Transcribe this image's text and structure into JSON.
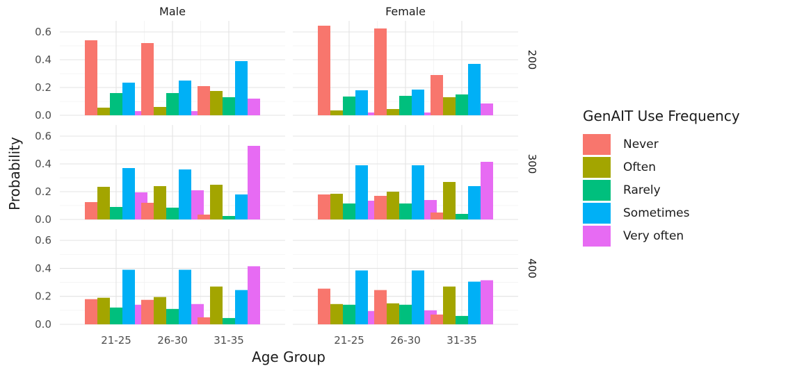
{
  "chart_data": {
    "type": "bar",
    "xlabel": "Age Group",
    "ylabel": "Probability",
    "ylim": [
      0,
      0.68
    ],
    "yticks": [
      0.0,
      0.2,
      0.4,
      0.6
    ],
    "categories": [
      "21-25",
      "26-30",
      "31-35"
    ],
    "column_facets": [
      "Male",
      "Female"
    ],
    "row_facets": [
      "200",
      "300",
      "400"
    ],
    "grid": true,
    "legend": {
      "title": "GenAIT Use Frequency",
      "position": "right",
      "entries": [
        "Never",
        "Often",
        "Rarely",
        "Sometimes",
        "Very often"
      ]
    },
    "series_colors": {
      "Never": "#F8766D",
      "Often": "#A3A500",
      "Rarely": "#00BF7D",
      "Sometimes": "#00B0F6",
      "Very often": "#E76BF3"
    },
    "panels": [
      {
        "row": "200",
        "col": "Male",
        "values": {
          "21-25": [
            0.54,
            0.055,
            0.16,
            0.235,
            0.03
          ],
          "26-30": [
            0.52,
            0.06,
            0.16,
            0.25,
            0.03
          ],
          "31-35": [
            0.21,
            0.175,
            0.13,
            0.39,
            0.12
          ]
        }
      },
      {
        "row": "200",
        "col": "Female",
        "values": {
          "21-25": [
            0.645,
            0.035,
            0.135,
            0.18,
            0.02
          ],
          "26-30": [
            0.625,
            0.045,
            0.14,
            0.185,
            0.02
          ],
          "31-35": [
            0.29,
            0.13,
            0.15,
            0.37,
            0.085
          ]
        }
      },
      {
        "row": "300",
        "col": "Male",
        "values": {
          "21-25": [
            0.125,
            0.235,
            0.09,
            0.37,
            0.195
          ],
          "26-30": [
            0.12,
            0.24,
            0.085,
            0.36,
            0.21
          ],
          "31-35": [
            0.035,
            0.25,
            0.025,
            0.18,
            0.53
          ]
        }
      },
      {
        "row": "300",
        "col": "Female",
        "values": {
          "21-25": [
            0.18,
            0.185,
            0.115,
            0.39,
            0.135
          ],
          "26-30": [
            0.17,
            0.2,
            0.115,
            0.39,
            0.14
          ],
          "31-35": [
            0.05,
            0.27,
            0.04,
            0.24,
            0.415
          ]
        }
      },
      {
        "row": "400",
        "col": "Male",
        "values": {
          "21-25": [
            0.18,
            0.19,
            0.12,
            0.39,
            0.14
          ],
          "26-30": [
            0.175,
            0.195,
            0.11,
            0.39,
            0.145
          ],
          "31-35": [
            0.05,
            0.27,
            0.045,
            0.245,
            0.415
          ]
        }
      },
      {
        "row": "400",
        "col": "Female",
        "values": {
          "21-25": [
            0.255,
            0.145,
            0.14,
            0.385,
            0.095
          ],
          "26-30": [
            0.245,
            0.15,
            0.14,
            0.385,
            0.1
          ],
          "31-35": [
            0.07,
            0.27,
            0.06,
            0.305,
            0.315
          ]
        }
      }
    ]
  }
}
